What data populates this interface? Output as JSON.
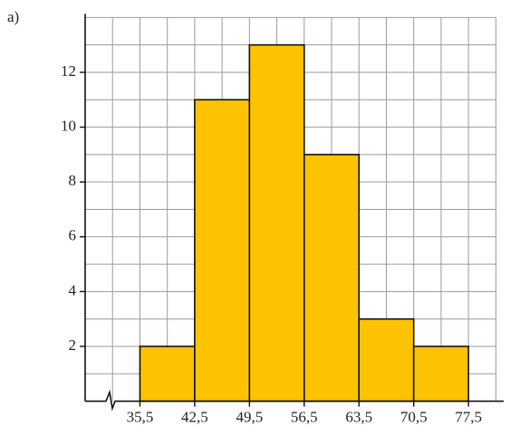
{
  "chart_data": {
    "type": "histogram",
    "label": "a)",
    "bins": [
      35.5,
      42.5,
      49.5,
      56.5,
      63.5,
      70.5,
      77.5
    ],
    "values": [
      2,
      11,
      13,
      9,
      3,
      2
    ],
    "color": "#fdc300",
    "xlim": [
      28.5,
      82
    ],
    "ylim": [
      0,
      14.2
    ],
    "xticks": [
      {
        "value": 35.5,
        "label": "35,5"
      },
      {
        "value": 42.5,
        "label": "42,5"
      },
      {
        "value": 49.5,
        "label": "49,5"
      },
      {
        "value": 56.5,
        "label": "56,5"
      },
      {
        "value": 63.5,
        "label": "63,5"
      },
      {
        "value": 70.5,
        "label": "70,5"
      },
      {
        "value": 77.5,
        "label": "77,5"
      }
    ],
    "yticks": [
      2,
      4,
      6,
      8,
      10,
      12
    ],
    "grid": true
  }
}
